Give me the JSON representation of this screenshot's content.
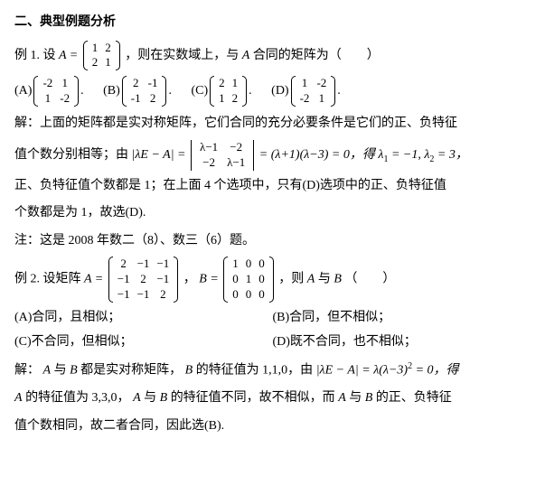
{
  "section_title": "二、典型例题分析",
  "ex1": {
    "label": "例 1.",
    "lead1": "设 ",
    "A_eq": "A =",
    "matrixA": [
      [
        "1",
        "2"
      ],
      [
        "2",
        "1"
      ]
    ],
    "lead2": "，则在实数域上，与 ",
    "A_name": "A",
    "lead3": " 合同的矩阵为（　　）",
    "options": {
      "A": {
        "label": "(A)",
        "m": [
          [
            "-2",
            "1"
          ],
          [
            "1",
            "-2"
          ]
        ],
        "tail": "."
      },
      "B": {
        "label": "(B)",
        "m": [
          [
            "2",
            "-1"
          ],
          [
            "-1",
            "2"
          ]
        ],
        "tail": "."
      },
      "C": {
        "label": "(C)",
        "m": [
          [
            "2",
            "1"
          ],
          [
            "1",
            "2"
          ]
        ],
        "tail": "."
      },
      "D": {
        "label": "(D)",
        "m": [
          [
            "1",
            "-2"
          ],
          [
            "-2",
            "1"
          ]
        ],
        "tail": "."
      }
    },
    "sol1": "解：上面的矩阵都是实对称矩阵，它们合同的充分必要条件是它们的正、负特征",
    "sol2_a": "值个数分别相等；由",
    "det_expr": "|λE − A| =",
    "det_m": [
      [
        "λ−1",
        "−2"
      ],
      [
        "−2",
        "λ−1"
      ]
    ],
    "det_rhs": "= (λ+1)(λ−3) = 0，得 λ",
    "l1_sub": "1",
    "l1_val": " = −1, λ",
    "l2_sub": "2",
    "l2_val": " = 3，",
    "sol3": "正、负特征值个数都是 1；在上面 4 个选项中，只有(D)选项中的正、负特征值",
    "sol4": "个数都是为 1，故选(D).",
    "note": "注：这是 2008 年数二（8）、数三（6）题。"
  },
  "ex2": {
    "label": "例 2.",
    "lead1": " 设矩阵 ",
    "A_eq": "A =",
    "matrixA": [
      [
        "2",
        "−1",
        "−1"
      ],
      [
        "−1",
        "2",
        "−1"
      ],
      [
        "−1",
        "−1",
        "2"
      ]
    ],
    "sep": "， ",
    "B_eq": "B =",
    "matrixB": [
      [
        "1",
        "0",
        "0"
      ],
      [
        "0",
        "1",
        "0"
      ],
      [
        "0",
        "0",
        "0"
      ]
    ],
    "lead2": "，则 ",
    "A_name": "A",
    "and": " 与 ",
    "B_name": "B",
    "lead3": "（　　）",
    "options": {
      "A": "(A)合同，且相似；",
      "B": "(B)合同，但不相似；",
      "C": "(C)不合同，但相似；",
      "D": "(D)既不合同，也不相似；"
    },
    "sol1_a": "解：",
    "sol1_b": " 与 ",
    "sol1_c": " 都是实对称矩阵，",
    "sol1_d": " 的特征值为 1,1,0，由",
    "det_expr": "|λE − A| = λ(λ−3)",
    "exp": "2",
    "det_rhs": " = 0，得",
    "sol2_a": " 的特征值为 3,3,0，",
    "sol2_b": " 与 ",
    "sol2_c": " 的特征值不同，故不相似，而 ",
    "sol2_d": " 与 ",
    "sol2_e": " 的正、负特征",
    "sol3": "值个数相同，故二者合同，因此选(B)."
  }
}
